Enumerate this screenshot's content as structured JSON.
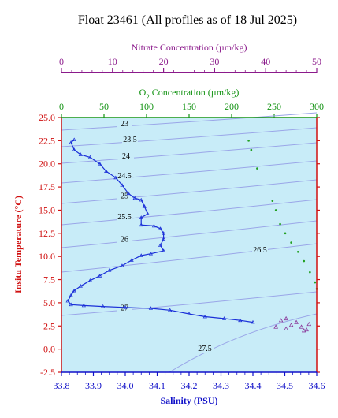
{
  "chart_data": {
    "type": "line",
    "title": "Float 23461  (All profiles as of 18 Jul 2025)",
    "xlabel": "Salinity (PSU)",
    "ylabel": "Insitu Temperature (°C)",
    "xlim": [
      33.8,
      34.6
    ],
    "ylim": [
      -2.5,
      25.0
    ],
    "x_ticks": [
      "33.8",
      "33.9",
      "34.0",
      "34.1",
      "34.2",
      "34.3",
      "34.4",
      "34.5",
      "34.6"
    ],
    "y_ticks": [
      "-2.5",
      "0.0",
      "2.5",
      "5.0",
      "7.5",
      "10.0",
      "12.5",
      "15.0",
      "17.5",
      "20.0",
      "22.5",
      "25.0"
    ],
    "oxygen_axis": {
      "label_prefix": "O",
      "label_sub": "2",
      "label_suffix": " Concentration (µm/kg)",
      "lim": [
        0,
        300
      ],
      "ticks": [
        "0",
        "50",
        "100",
        "150",
        "200",
        "250",
        "300"
      ]
    },
    "nitrate_axis": {
      "label": "Nitrate Concentration (µm/kg)",
      "lim": [
        0,
        50
      ],
      "ticks": [
        "0",
        "10",
        "20",
        "30",
        "40",
        "50"
      ]
    },
    "density_labels": [
      "23",
      "23.5",
      "24",
      "24.5",
      "25",
      "25.5",
      "26",
      "26.5",
      "27",
      "27.5"
    ],
    "series": [
      {
        "kind": "salinity",
        "points": [
          [
            33.84,
            22.6
          ],
          [
            33.83,
            22.3
          ],
          [
            33.84,
            21.5
          ],
          [
            33.86,
            21.0
          ],
          [
            33.89,
            20.7
          ],
          [
            33.92,
            20.0
          ],
          [
            33.94,
            19.2
          ],
          [
            33.97,
            18.5
          ],
          [
            33.99,
            17.7
          ],
          [
            34.01,
            16.8
          ],
          [
            34.03,
            16.3
          ],
          [
            34.05,
            16.1
          ],
          [
            34.06,
            15.4
          ],
          [
            34.07,
            14.6
          ],
          [
            34.05,
            14.2
          ],
          [
            34.05,
            13.4
          ],
          [
            34.09,
            13.3
          ],
          [
            34.11,
            13.0
          ],
          [
            34.12,
            12.5
          ],
          [
            34.12,
            11.9
          ],
          [
            34.11,
            11.2
          ],
          [
            34.12,
            10.6
          ],
          [
            34.08,
            10.3
          ],
          [
            34.05,
            10.1
          ],
          [
            34.02,
            9.6
          ],
          [
            33.99,
            9.0
          ],
          [
            33.95,
            8.5
          ],
          [
            33.92,
            7.9
          ],
          [
            33.89,
            7.4
          ],
          [
            33.86,
            6.8
          ],
          [
            33.84,
            6.3
          ],
          [
            33.83,
            5.8
          ],
          [
            33.82,
            5.2
          ],
          [
            33.83,
            4.8
          ],
          [
            33.87,
            4.7
          ],
          [
            33.93,
            4.6
          ],
          [
            34.0,
            4.5
          ],
          [
            34.08,
            4.4
          ],
          [
            34.14,
            4.2
          ],
          [
            34.2,
            3.8
          ],
          [
            34.25,
            3.5
          ],
          [
            34.31,
            3.3
          ],
          [
            34.36,
            3.1
          ],
          [
            34.4,
            2.9
          ]
        ]
      },
      {
        "kind": "oxygen",
        "points": [
          [
            220,
            22.5
          ],
          [
            223,
            21.5
          ],
          [
            230,
            19.5
          ],
          [
            248,
            16.0
          ],
          [
            252,
            15.0
          ],
          [
            257,
            13.5
          ],
          [
            263,
            12.5
          ],
          [
            270,
            11.5
          ],
          [
            278,
            10.5
          ],
          [
            285,
            9.5
          ],
          [
            292,
            8.3
          ],
          [
            298,
            7.2
          ],
          [
            300,
            6.5
          ]
        ]
      },
      {
        "kind": "nitrate",
        "points": [
          [
            42,
            2.4
          ],
          [
            44,
            2.2
          ],
          [
            45,
            2.6
          ],
          [
            46,
            2.9
          ],
          [
            47,
            2.4
          ],
          [
            47.5,
            2.0
          ],
          [
            48,
            2.1
          ],
          [
            48.5,
            2.7
          ],
          [
            43,
            3.1
          ],
          [
            44,
            3.3
          ]
        ]
      }
    ]
  }
}
